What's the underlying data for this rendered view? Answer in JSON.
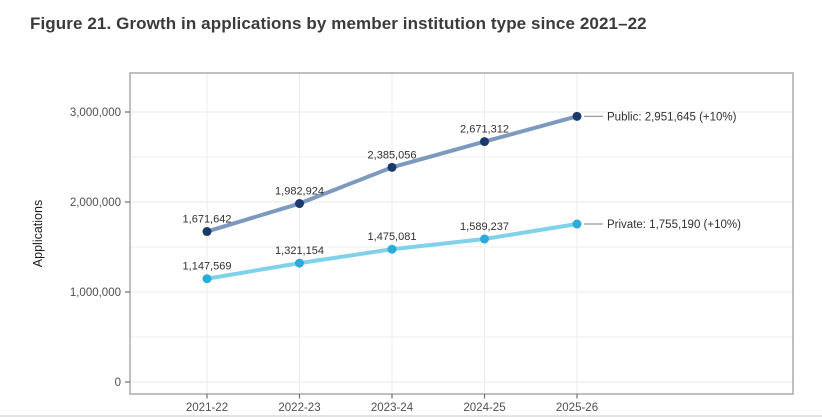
{
  "title": "Figure 21. Growth in applications by member institution type since 2021–22",
  "chart_data": {
    "type": "line",
    "title": "Figure 21. Growth in applications by member institution type since 2021–22",
    "categories": [
      "2021-22",
      "2022-23",
      "2023-24",
      "2024-25",
      "2025-26"
    ],
    "series": [
      {
        "name": "Public",
        "values": [
          1671642,
          1982924,
          2385056,
          2671312,
          2951645
        ],
        "point_labels": [
          "1,671,642",
          "1,982,924",
          "2,385,056",
          "2,671,312",
          "2,951,645"
        ],
        "end_label": "Public: 2,951,645 (+10%)",
        "line_color": "#7d9abe",
        "marker_color": "#1b3a6b"
      },
      {
        "name": "Private",
        "values": [
          1147569,
          1321154,
          1475081,
          1589237,
          1755190
        ],
        "point_labels": [
          "1,147,569",
          "1,321,154",
          "1,475,081",
          "1,589,237",
          "1,755,190"
        ],
        "end_label": "Private: 1,755,190 (+10%)",
        "line_color": "#80d2ea",
        "marker_color": "#2aacd8"
      }
    ],
    "xlabel": "",
    "ylabel": "Applications",
    "ylim": [
      0,
      3433000
    ],
    "ytick_values": [
      0,
      1000000,
      2000000,
      3000000
    ],
    "ytick_labels": [
      "0",
      "1,000,000",
      "2,000,000",
      "3,000,000"
    ],
    "ygrid_minor_values": [
      500000,
      1500000,
      2500000
    ],
    "grid": true,
    "legend_position": "end-of-line-labels-right"
  },
  "colors": {
    "title_text": "#3b3b3b",
    "grid_major": "#eaeaea",
    "grid_minor": "#ececec",
    "panel_border": "#9e9e9e",
    "tick_mark": "#6e6e6e",
    "tick_label": "#4f4f4f",
    "data_label": "#303030",
    "axis_title": "#1d1d1d",
    "leader_line": "#9b9b9b",
    "background": "#ffffff"
  }
}
